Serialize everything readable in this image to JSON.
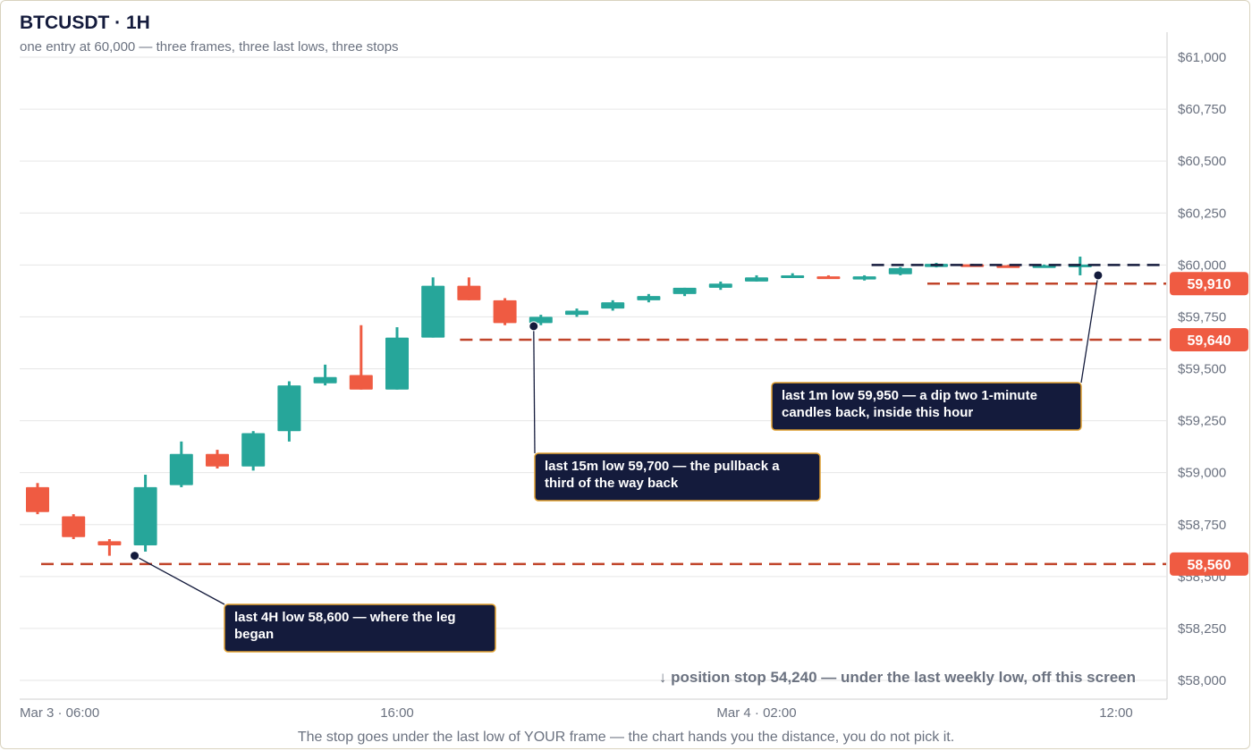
{
  "header": {
    "title": "BTCUSDT · 1H",
    "subtitle": "one entry at 60,000 — three frames, three last lows, three stops"
  },
  "caption": "The stop goes under the last low of YOUR frame — the chart hands you the distance, you do not pick it.",
  "colors": {
    "up": "#26a69a",
    "down": "#ef5b42",
    "stop_line": "#c0442a",
    "stop_tag": "#ef5b42",
    "entry_line": "#141b3c",
    "callout_bg": "#141b3c",
    "callout_border": "#e0a030",
    "grid": "#e6e6e6",
    "axis_text": "#6b7280"
  },
  "chart_data": {
    "type": "candlestick",
    "title": "BTCUSDT · 1H",
    "y_axis": {
      "side": "right",
      "range": [
        57900,
        61100
      ],
      "ticks": [
        58000,
        58250,
        58500,
        58750,
        59000,
        59250,
        59500,
        59750,
        60000,
        60250,
        60500,
        60750,
        61000
      ],
      "tick_labels": [
        "$58,000",
        "$58,250",
        "$58,500",
        "$58,750",
        "$59,000",
        "$59,250",
        "$59,500",
        "$59,750",
        "$60,000",
        "$60,250",
        "$60,500",
        "$60,750",
        "$61,000"
      ]
    },
    "x_axis": {
      "ticks": [
        {
          "index": 0,
          "label": "Mar 3 · 06:00"
        },
        {
          "index": 10,
          "label": "16:00"
        },
        {
          "index": 20,
          "label": "Mar 4 · 02:00"
        },
        {
          "index": 30,
          "label": "12:00"
        }
      ]
    },
    "grid": true,
    "candles": [
      {
        "o": 58930,
        "h": 58950,
        "l": 58800,
        "c": 58810
      },
      {
        "o": 58790,
        "h": 58800,
        "l": 58680,
        "c": 58690
      },
      {
        "o": 58670,
        "h": 58680,
        "l": 58600,
        "c": 58650
      },
      {
        "o": 58650,
        "h": 58990,
        "l": 58620,
        "c": 58930
      },
      {
        "o": 58940,
        "h": 59150,
        "l": 58930,
        "c": 59090
      },
      {
        "o": 59090,
        "h": 59110,
        "l": 59020,
        "c": 59030
      },
      {
        "o": 59030,
        "h": 59200,
        "l": 59010,
        "c": 59190
      },
      {
        "o": 59200,
        "h": 59440,
        "l": 59150,
        "c": 59420
      },
      {
        "o": 59430,
        "h": 59520,
        "l": 59420,
        "c": 59460
      },
      {
        "o": 59470,
        "h": 59710,
        "l": 59400,
        "c": 59400
      },
      {
        "o": 59400,
        "h": 59700,
        "l": 59400,
        "c": 59650
      },
      {
        "o": 59650,
        "h": 59940,
        "l": 59650,
        "c": 59900
      },
      {
        "o": 59900,
        "h": 59940,
        "l": 59830,
        "c": 59830
      },
      {
        "o": 59830,
        "h": 59840,
        "l": 59710,
        "c": 59720
      },
      {
        "o": 59720,
        "h": 59760,
        "l": 59710,
        "c": 59750
      },
      {
        "o": 59760,
        "h": 59790,
        "l": 59750,
        "c": 59780
      },
      {
        "o": 59790,
        "h": 59830,
        "l": 59780,
        "c": 59820
      },
      {
        "o": 59830,
        "h": 59860,
        "l": 59820,
        "c": 59850
      },
      {
        "o": 59860,
        "h": 59890,
        "l": 59850,
        "c": 59890
      },
      {
        "o": 59890,
        "h": 59920,
        "l": 59880,
        "c": 59910
      },
      {
        "o": 59920,
        "h": 59950,
        "l": 59920,
        "c": 59940
      },
      {
        "o": 59945,
        "h": 59960,
        "l": 59940,
        "c": 59950
      },
      {
        "o": 59945,
        "h": 59950,
        "l": 59935,
        "c": 59937
      },
      {
        "o": 59930,
        "h": 59950,
        "l": 59925,
        "c": 59945
      },
      {
        "o": 59955,
        "h": 59990,
        "l": 59950,
        "c": 59985
      },
      {
        "o": 59990,
        "h": 60010,
        "l": 59988,
        "c": 60005
      },
      {
        "o": 60003,
        "h": 60005,
        "l": 59995,
        "c": 59996
      },
      {
        "o": 59998,
        "h": 60000,
        "l": 59990,
        "c": 59992
      },
      {
        "o": 59992,
        "h": 60002,
        "l": 59988,
        "c": 59998
      },
      {
        "o": 59998,
        "h": 60040,
        "l": 59950,
        "c": 60002
      }
    ],
    "entry": {
      "value": 60000,
      "from_index": 23
    },
    "stops": [
      {
        "value": 59910,
        "label": "59,910",
        "from_index": 25
      },
      {
        "value": 59640,
        "label": "59,640",
        "from_index": 12
      },
      {
        "value": 58560,
        "label": "58,560",
        "from_index": 0
      }
    ],
    "annotations": [
      {
        "text": "last 4H low 58,600 — where the leg began",
        "point": {
          "index": 2.7,
          "value": 58600
        },
        "lines": [
          "last 4H low 58,600 — where the leg",
          "began"
        ],
        "name": "callout-4h"
      },
      {
        "text": "last 15m low 59,700 — the pullback a third of the way back",
        "point": {
          "index": 13.8,
          "value": 59705
        },
        "lines": [
          "last 15m low 59,700 — the pullback a",
          "third of the way back"
        ],
        "name": "callout-15m"
      },
      {
        "text": "last 1m low 59,950 — a dip two 1-minute candles back, inside this hour",
        "point": {
          "index": 29.5,
          "value": 59950
        },
        "lines": [
          "last 1m low 59,950 — a dip two 1-minute",
          "candles back, inside this hour"
        ],
        "name": "callout-1m"
      }
    ],
    "offscreen_note": "↓ position stop 54,240 — under the last weekly low, off this screen"
  }
}
